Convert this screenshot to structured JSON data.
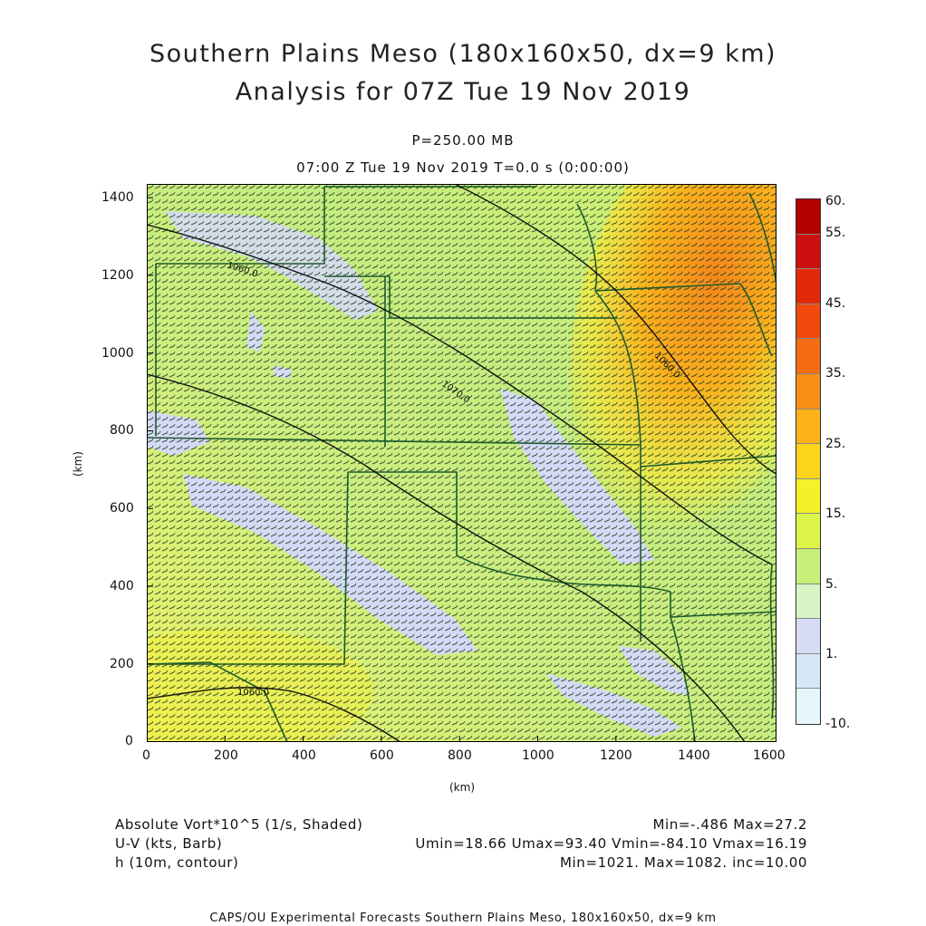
{
  "header": {
    "title_line1": "Southern Plains Meso (180x160x50, dx=9 km)",
    "title_line2": "Analysis for 07Z Tue 19 Nov 2019",
    "level": "P=250.00 MB",
    "time": "07:00 Z Tue 19 Nov 2019    T=0.0 s (0:00:00)"
  },
  "axes": {
    "x_ticks": [
      "0",
      "200",
      "400",
      "600",
      "800",
      "1000",
      "1200",
      "1400",
      "1600"
    ],
    "y_ticks": [
      "0",
      "200",
      "400",
      "600",
      "800",
      "1000",
      "1200",
      "1400"
    ],
    "x_label": "(km)",
    "y_label": "(km)"
  },
  "colorbar": {
    "labels": [
      "60.",
      "55.",
      "45.",
      "35.",
      "25.",
      "15.",
      "5.",
      "1.",
      "-10."
    ],
    "colors": [
      "#b50000",
      "#cc1010",
      "#e02a0a",
      "#ef4a0c",
      "#f46c12",
      "#f98e16",
      "#fbb318",
      "#fdd41c",
      "#f4f02a",
      "#ddf548",
      "#c6f07a",
      "#d8f5c6",
      "#d6dcf6",
      "#d6e8f5",
      "#e4f6fb"
    ]
  },
  "contours": [
    {
      "label": "1060.0"
    },
    {
      "label": "1070.0"
    },
    {
      "label": "1060.0"
    },
    {
      "label": "1060.0"
    }
  ],
  "info": {
    "field1": "Absolute Vort*10^5 (1/s, Shaded)",
    "field2": "U-V (kts, Barb)",
    "field3": "h (10m, contour)",
    "stats1": "Min=-.486 Max=27.2",
    "stats2": "Umin=18.66 Umax=93.40 Vmin=-84.10 Vmax=16.19",
    "stats3": "Min=1021. Max=1082. inc=10.00"
  },
  "footer": "CAPS/OU Experimental Forecasts  Southern Plains Meso, 180x160x50, dx=9 km"
}
